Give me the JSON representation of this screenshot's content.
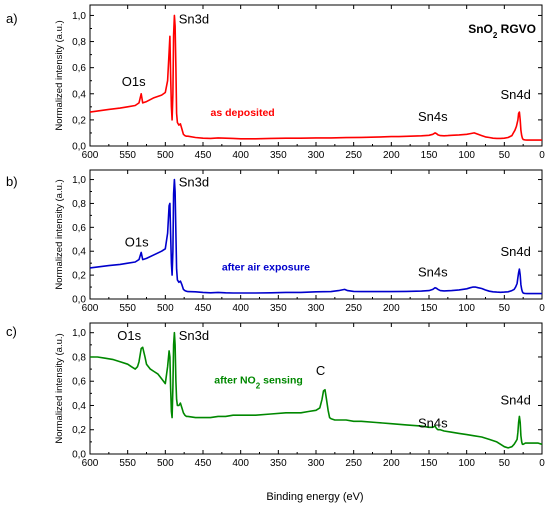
{
  "xlabel": "Binding energy (eV)",
  "colors": {
    "a": "#ff0000",
    "b": "#0000cc",
    "c": "#008800"
  },
  "chart_data": [
    {
      "type": "line",
      "panel_label": "a)",
      "badge": {
        "main": "SnO",
        "sub": "2",
        "rest": " RGVO"
      },
      "annotation": {
        "text": "as deposited",
        "sub": "",
        "rest": "",
        "x": 440,
        "y": 0.23
      },
      "ylabel": "Normalized intensity (a.u.)",
      "xlim": [
        600,
        0
      ],
      "ylim": [
        0,
        1.08
      ],
      "xticks": [
        "600",
        "550",
        "500",
        "450",
        "400",
        "350",
        "300",
        "250",
        "200",
        "150",
        "100",
        "50",
        "0"
      ],
      "yticks": [
        "0,0",
        "0,2",
        "0,4",
        "0,6",
        "0,8",
        "1,0"
      ],
      "peaks": [
        {
          "label": "O1s",
          "x": 542,
          "y": 0.46
        },
        {
          "label": "Sn3d",
          "x": 462,
          "y": 0.94
        },
        {
          "label": "Sn4s",
          "x": 145,
          "y": 0.19
        },
        {
          "label": "Sn4d",
          "x": 35,
          "y": 0.36
        }
      ],
      "x": [
        600,
        575,
        560,
        550,
        540,
        535,
        532,
        530,
        525,
        515,
        505,
        500,
        497,
        495,
        494,
        493,
        492,
        491,
        490,
        489,
        488,
        487,
        486,
        485,
        484,
        482,
        480,
        478,
        476,
        474,
        472,
        470,
        460,
        450,
        440,
        430,
        420,
        410,
        400,
        380,
        360,
        340,
        320,
        300,
        280,
        260,
        240,
        220,
        200,
        190,
        180,
        170,
        160,
        150,
        145,
        142,
        140,
        138,
        135,
        130,
        125,
        120,
        110,
        100,
        95,
        90,
        85,
        80,
        75,
        70,
        65,
        60,
        55,
        50,
        45,
        40,
        38,
        36,
        34,
        32,
        31,
        30,
        29,
        28,
        27,
        26,
        25,
        24,
        22,
        20,
        15,
        10,
        5,
        2,
        0
      ],
      "y": [
        0.26,
        0.28,
        0.29,
        0.3,
        0.31,
        0.33,
        0.4,
        0.33,
        0.34,
        0.37,
        0.39,
        0.41,
        0.5,
        0.72,
        0.84,
        0.55,
        0.3,
        0.2,
        0.4,
        0.85,
        1.0,
        0.92,
        0.6,
        0.25,
        0.18,
        0.16,
        0.17,
        0.13,
        0.09,
        0.08,
        0.075,
        0.075,
        0.065,
        0.06,
        0.058,
        0.062,
        0.06,
        0.058,
        0.055,
        0.055,
        0.058,
        0.06,
        0.06,
        0.062,
        0.062,
        0.064,
        0.066,
        0.068,
        0.072,
        0.072,
        0.074,
        0.076,
        0.078,
        0.082,
        0.09,
        0.1,
        0.095,
        0.085,
        0.08,
        0.078,
        0.08,
        0.082,
        0.085,
        0.09,
        0.095,
        0.1,
        0.09,
        0.08,
        0.07,
        0.065,
        0.06,
        0.058,
        0.058,
        0.06,
        0.065,
        0.08,
        0.1,
        0.12,
        0.15,
        0.2,
        0.25,
        0.26,
        0.2,
        0.12,
        0.08,
        0.06,
        0.05,
        0.048,
        0.046,
        0.045,
        0.045,
        0.045,
        0.045,
        0.045,
        0.045
      ]
    },
    {
      "type": "line",
      "panel_label": "b)",
      "annotation": {
        "text": "after air exposure",
        "sub": "",
        "rest": "",
        "x": 425,
        "y": 0.24
      },
      "ylabel": "Normalized intensity (a.u.)",
      "xlim": [
        600,
        0
      ],
      "ylim": [
        0,
        1.08
      ],
      "xticks": [
        "600",
        "550",
        "500",
        "450",
        "400",
        "350",
        "300",
        "250",
        "200",
        "150",
        "100",
        "50",
        "0"
      ],
      "yticks": [
        "0,0",
        "0,2",
        "0,4",
        "0,6",
        "0,8",
        "1,0"
      ],
      "peaks": [
        {
          "label": "O1s",
          "x": 538,
          "y": 0.44
        },
        {
          "label": "Sn3d",
          "x": 462,
          "y": 0.94
        },
        {
          "label": "Sn4s",
          "x": 145,
          "y": 0.19
        },
        {
          "label": "Sn4d",
          "x": 35,
          "y": 0.36
        }
      ],
      "x": [
        600,
        575,
        560,
        550,
        540,
        535,
        532,
        530,
        525,
        515,
        505,
        500,
        497,
        495,
        494,
        493,
        492,
        491,
        490,
        489,
        488,
        487,
        486,
        485,
        484,
        482,
        480,
        478,
        476,
        474,
        472,
        470,
        460,
        450,
        440,
        430,
        420,
        410,
        400,
        380,
        360,
        340,
        320,
        300,
        280,
        270,
        262,
        258,
        250,
        240,
        220,
        200,
        180,
        160,
        150,
        145,
        142,
        140,
        138,
        135,
        130,
        120,
        110,
        100,
        95,
        92,
        88,
        85,
        80,
        75,
        70,
        65,
        60,
        55,
        50,
        45,
        40,
        37,
        35,
        33,
        32,
        31,
        30,
        29,
        28,
        27,
        26,
        25,
        24,
        22,
        20,
        15,
        10,
        5,
        0
      ],
      "y": [
        0.26,
        0.28,
        0.29,
        0.3,
        0.31,
        0.33,
        0.39,
        0.33,
        0.34,
        0.37,
        0.4,
        0.42,
        0.55,
        0.78,
        0.8,
        0.55,
        0.3,
        0.2,
        0.4,
        0.88,
        1.0,
        0.9,
        0.55,
        0.25,
        0.16,
        0.14,
        0.15,
        0.12,
        0.08,
        0.07,
        0.065,
        0.062,
        0.06,
        0.055,
        0.052,
        0.055,
        0.052,
        0.05,
        0.05,
        0.05,
        0.052,
        0.055,
        0.055,
        0.06,
        0.062,
        0.07,
        0.08,
        0.07,
        0.064,
        0.062,
        0.062,
        0.062,
        0.064,
        0.066,
        0.07,
        0.08,
        0.095,
        0.09,
        0.08,
        0.07,
        0.068,
        0.07,
        0.076,
        0.085,
        0.095,
        0.1,
        0.1,
        0.095,
        0.088,
        0.075,
        0.065,
        0.06,
        0.058,
        0.056,
        0.058,
        0.06,
        0.07,
        0.08,
        0.1,
        0.13,
        0.18,
        0.22,
        0.25,
        0.2,
        0.12,
        0.08,
        0.06,
        0.05,
        0.048,
        0.046,
        0.045,
        0.045,
        0.045,
        0.045,
        0.045
      ]
    },
    {
      "type": "line",
      "panel_label": "c)",
      "annotation": {
        "text": "after NO",
        "sub": "2",
        "rest": " sensing",
        "x": 435,
        "y": 0.58
      },
      "ylabel": "Normalized intensity (a.u.)",
      "xlim": [
        600,
        0
      ],
      "ylim": [
        0,
        1.08
      ],
      "xticks": [
        "600",
        "550",
        "500",
        "450",
        "400",
        "350",
        "300",
        "250",
        "200",
        "150",
        "100",
        "50",
        "0"
      ],
      "yticks": [
        "0,0",
        "0,2",
        "0,4",
        "0,6",
        "0,8",
        "1,0"
      ],
      "peaks": [
        {
          "label": "O1s",
          "x": 548,
          "y": 0.94
        },
        {
          "label": "Sn3d",
          "x": 462,
          "y": 0.94
        },
        {
          "label": "C",
          "x": 294,
          "y": 0.65
        },
        {
          "label": "Sn4s",
          "x": 145,
          "y": 0.22
        },
        {
          "label": "Sn4d",
          "x": 35,
          "y": 0.41
        }
      ],
      "x": [
        600,
        590,
        580,
        570,
        560,
        550,
        545,
        540,
        537,
        535,
        532,
        530,
        527,
        525,
        520,
        515,
        510,
        505,
        500,
        497,
        495,
        494,
        493,
        492,
        491,
        490,
        489,
        488,
        487,
        486,
        485,
        484,
        482,
        480,
        478,
        476,
        474,
        472,
        470,
        460,
        450,
        440,
        430,
        420,
        410,
        400,
        380,
        360,
        340,
        320,
        310,
        300,
        295,
        292,
        290,
        288,
        286,
        284,
        282,
        280,
        275,
        270,
        260,
        250,
        240,
        220,
        200,
        180,
        160,
        150,
        145,
        142,
        140,
        138,
        135,
        130,
        120,
        110,
        100,
        90,
        80,
        70,
        60,
        55,
        50,
        45,
        40,
        37,
        35,
        33,
        32,
        31,
        30,
        29,
        28,
        27,
        26,
        25,
        22,
        20,
        15,
        10,
        5,
        0
      ],
      "y": [
        0.8,
        0.8,
        0.79,
        0.78,
        0.76,
        0.74,
        0.72,
        0.7,
        0.72,
        0.76,
        0.87,
        0.88,
        0.8,
        0.74,
        0.7,
        0.68,
        0.66,
        0.62,
        0.58,
        0.72,
        0.85,
        0.8,
        0.55,
        0.35,
        0.3,
        0.55,
        0.9,
        1.0,
        0.9,
        0.6,
        0.45,
        0.4,
        0.4,
        0.42,
        0.38,
        0.34,
        0.32,
        0.31,
        0.31,
        0.3,
        0.3,
        0.3,
        0.31,
        0.31,
        0.32,
        0.32,
        0.32,
        0.33,
        0.34,
        0.34,
        0.35,
        0.36,
        0.38,
        0.45,
        0.52,
        0.53,
        0.45,
        0.36,
        0.3,
        0.29,
        0.28,
        0.28,
        0.28,
        0.27,
        0.27,
        0.26,
        0.25,
        0.24,
        0.23,
        0.22,
        0.22,
        0.23,
        0.21,
        0.2,
        0.2,
        0.19,
        0.18,
        0.17,
        0.16,
        0.15,
        0.14,
        0.12,
        0.1,
        0.08,
        0.06,
        0.05,
        0.06,
        0.08,
        0.1,
        0.12,
        0.18,
        0.26,
        0.31,
        0.26,
        0.15,
        0.1,
        0.08,
        0.08,
        0.09,
        0.09,
        0.09,
        0.09,
        0.09,
        0.08
      ]
    }
  ]
}
